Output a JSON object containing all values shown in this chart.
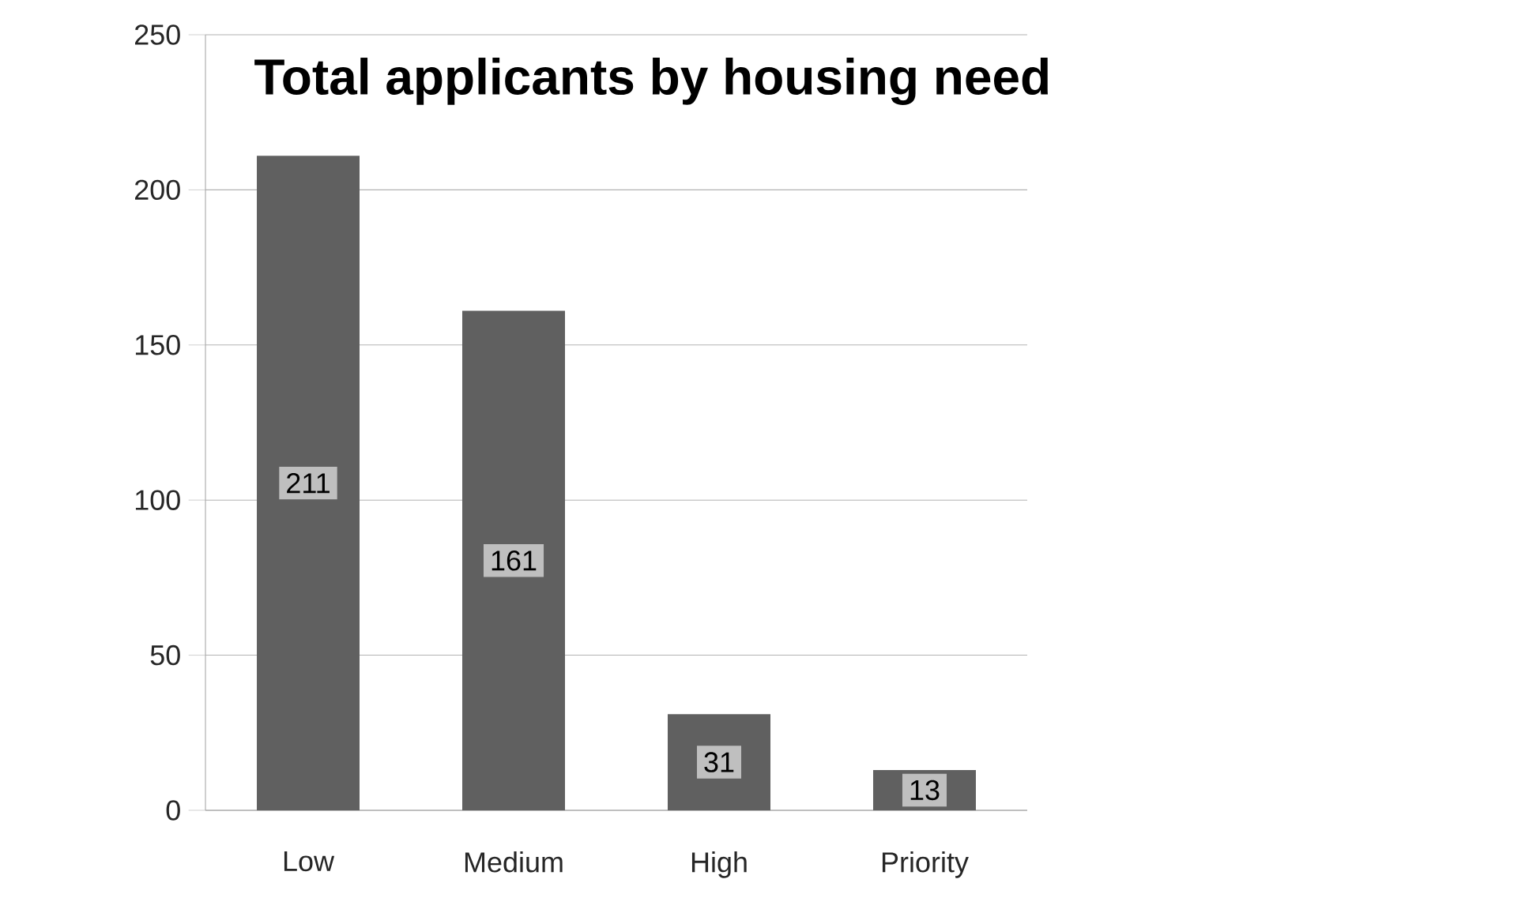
{
  "chart_data": {
    "type": "bar",
    "title": "Total applicants by housing need",
    "categories": [
      "Low",
      "Medium",
      "High",
      "Priority"
    ],
    "values": [
      211,
      161,
      31,
      13
    ],
    "color": "#606060",
    "ylim": [
      0,
      250
    ],
    "yticks": [
      0,
      50,
      100,
      150,
      200,
      250
    ],
    "grid": "y",
    "data_labels": true
  }
}
